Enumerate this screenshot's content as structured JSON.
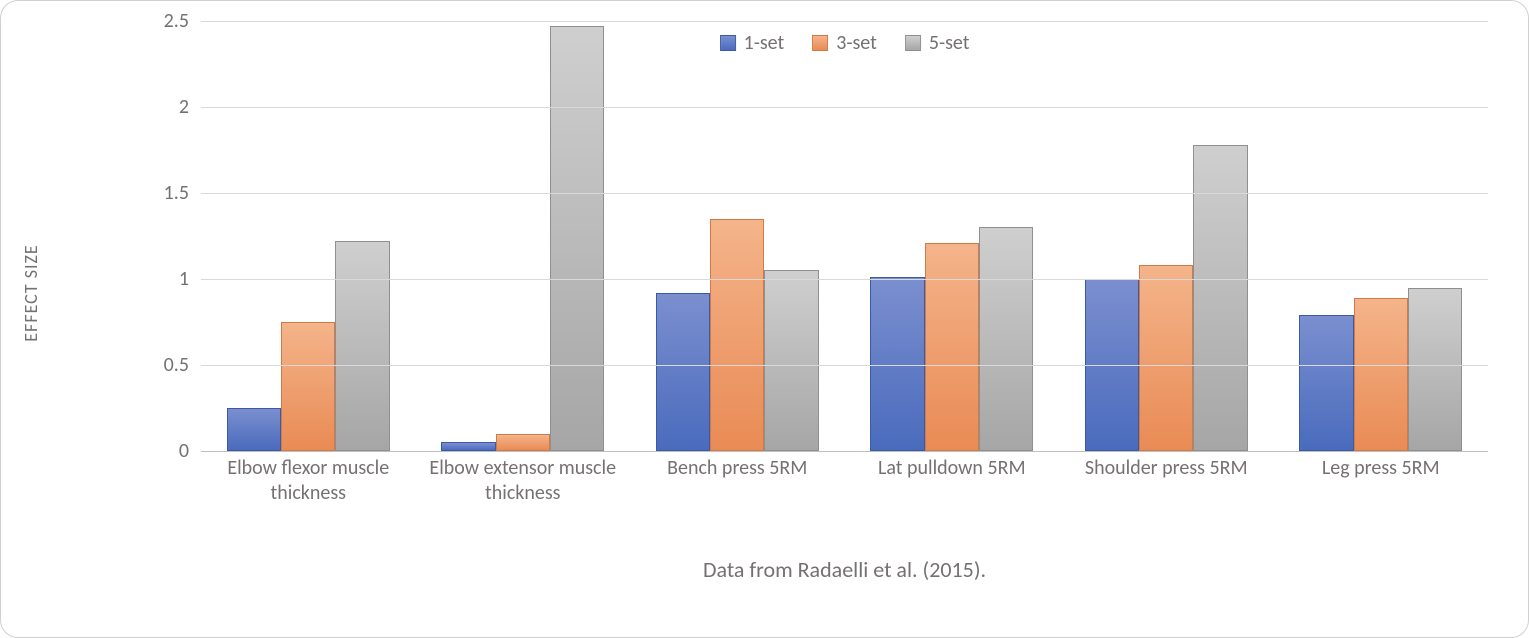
{
  "chart": {
    "type": "bar",
    "y_axis_title": "EFFECT SIZE",
    "ylim": [
      0,
      2.5
    ],
    "ytick_step": 0.5,
    "y_ticks": [
      0,
      0.5,
      1,
      1.5,
      2,
      2.5
    ],
    "y_tick_labels": [
      "0",
      "0.5",
      "1",
      "1.5",
      "2",
      "2.5"
    ],
    "background_color": "#ffffff",
    "grid_color": "#d9d9d9",
    "axis_color": "#bfbfbf",
    "text_color": "#767171",
    "label_fontsize_pt": 15,
    "tick_fontsize_pt": 15,
    "caption_fontsize_pt": 17,
    "y_title_fontsize_pt": 13,
    "bar_group_width_pct": 76,
    "bar_border_color": "rgba(0,0,0,0.2)",
    "caption": "Data from Radaelli et al. (2015).",
    "series": [
      {
        "name": "1-set",
        "color_top": "#7b8fcf",
        "color_bottom": "#4a6bbd",
        "border": "#3a5aa8"
      },
      {
        "name": "3-set",
        "color_top": "#f4b48a",
        "color_bottom": "#e98b55",
        "border": "#cf7a47"
      },
      {
        "name": "5-set",
        "color_top": "#cfcfcf",
        "color_bottom": "#a6a6a6",
        "border": "#8f8f8f"
      }
    ],
    "categories": [
      "Elbow flexor muscle thickness",
      "Elbow extensor muscle thickness",
      "Bench press 5RM",
      "Lat pulldown 5RM",
      "Shoulder press 5RM",
      "Leg press 5RM"
    ],
    "values": [
      [
        0.25,
        0.75,
        1.22
      ],
      [
        0.05,
        0.1,
        2.47
      ],
      [
        0.92,
        1.35,
        1.05
      ],
      [
        1.01,
        1.21,
        1.3
      ],
      [
        1.0,
        1.08,
        1.78
      ],
      [
        0.79,
        0.89,
        0.95
      ]
    ],
    "legend": {
      "position": "top-center",
      "items": [
        "1-set",
        "3-set",
        "5-set"
      ]
    }
  }
}
